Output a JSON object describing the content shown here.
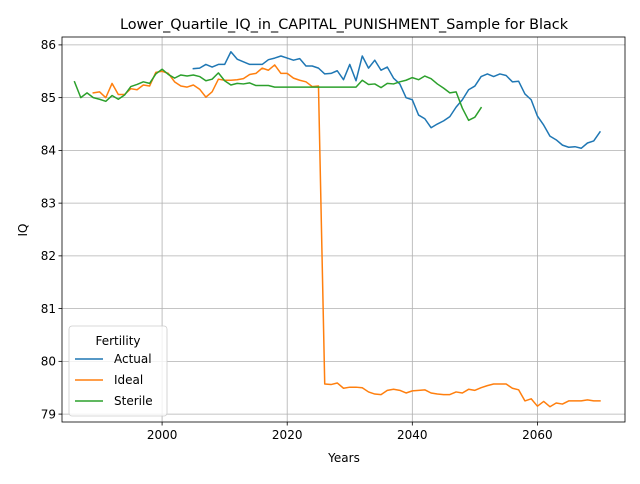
{
  "chart_data": {
    "type": "line",
    "title": "Lower_Quartile_IQ_in_CAPITAL_PUNISHMENT_Sample for Black",
    "xlabel": "Years",
    "ylabel": "IQ",
    "xlim": [
      1984,
      2074
    ],
    "ylim": [
      78.85,
      86.15
    ],
    "grid": true,
    "x_ticks": [
      2000,
      2020,
      2040,
      2060
    ],
    "x_tick_labels": [
      "2000",
      "2020",
      "2040",
      "2060"
    ],
    "y_ticks": [
      79,
      80,
      81,
      82,
      83,
      84,
      85,
      86
    ],
    "y_tick_labels": [
      "79",
      "80",
      "81",
      "82",
      "83",
      "84",
      "85",
      "86"
    ],
    "legend": {
      "title": "Fertility",
      "placement": "lower-left",
      "entries": [
        "Actual",
        "Ideal",
        "Sterile"
      ]
    },
    "series": [
      {
        "name": "Actual",
        "color": "#1f77b4",
        "x": [
          2005,
          2006,
          2007,
          2008,
          2009,
          2010,
          2011,
          2012,
          2013,
          2014,
          2015,
          2016,
          2017,
          2018,
          2019,
          2020,
          2021,
          2022,
          2023,
          2024,
          2025,
          2026,
          2027,
          2028,
          2029,
          2030,
          2031,
          2032,
          2033,
          2034,
          2035,
          2036,
          2037,
          2038,
          2039,
          2040,
          2041,
          2042,
          2043,
          2044,
          2045,
          2046,
          2047,
          2048,
          2049,
          2050,
          2051,
          2052,
          2053,
          2054,
          2055,
          2056,
          2057,
          2058,
          2059,
          2060,
          2061,
          2062,
          2063,
          2064,
          2065,
          2066,
          2067,
          2068,
          2069,
          2070
        ],
        "y": [
          85.55,
          85.56,
          85.63,
          85.58,
          85.63,
          85.63,
          85.87,
          85.73,
          85.68,
          85.63,
          85.63,
          85.63,
          85.72,
          85.75,
          85.79,
          85.75,
          85.71,
          85.74,
          85.6,
          85.6,
          85.56,
          85.45,
          85.46,
          85.51,
          85.34,
          85.63,
          85.32,
          85.79,
          85.56,
          85.71,
          85.52,
          85.58,
          85.37,
          85.26,
          85.0,
          84.96,
          84.67,
          84.6,
          84.43,
          84.5,
          84.56,
          84.64,
          84.82,
          84.96,
          85.15,
          85.22,
          85.4,
          85.45,
          85.4,
          85.45,
          85.42,
          85.3,
          85.31,
          85.07,
          84.96,
          84.65,
          84.48,
          84.27,
          84.2,
          84.1,
          84.06,
          84.07,
          84.04,
          84.14,
          84.18,
          84.35
        ]
      },
      {
        "name": "Ideal",
        "color": "#ff7f0e",
        "x": [
          1989,
          1990,
          1991,
          1992,
          1993,
          1994,
          1995,
          1996,
          1997,
          1998,
          1999,
          2000,
          2001,
          2002,
          2003,
          2004,
          2005,
          2006,
          2007,
          2008,
          2009,
          2010,
          2011,
          2012,
          2013,
          2014,
          2015,
          2016,
          2017,
          2018,
          2019,
          2020,
          2021,
          2022,
          2023,
          2024,
          2025,
          2026,
          2027,
          2028,
          2029,
          2030,
          2031,
          2032,
          2033,
          2034,
          2035,
          2036,
          2037,
          2038,
          2039,
          2040,
          2041,
          2042,
          2043,
          2044,
          2045,
          2046,
          2047,
          2048,
          2049,
          2050,
          2051,
          2052,
          2053,
          2054,
          2055,
          2056,
          2057,
          2058,
          2059,
          2060,
          2061,
          2062,
          2063,
          2064,
          2065,
          2066,
          2067,
          2068,
          2069,
          2070
        ],
        "y": [
          85.09,
          85.11,
          85.0,
          85.27,
          85.06,
          85.06,
          85.17,
          85.15,
          85.24,
          85.22,
          85.48,
          85.5,
          85.46,
          85.3,
          85.22,
          85.2,
          85.24,
          85.16,
          85.01,
          85.11,
          85.35,
          85.33,
          85.33,
          85.34,
          85.36,
          85.44,
          85.46,
          85.56,
          85.52,
          85.62,
          85.46,
          85.46,
          85.37,
          85.33,
          85.3,
          85.21,
          85.22,
          79.57,
          79.56,
          79.59,
          79.49,
          79.51,
          79.51,
          79.5,
          79.42,
          79.38,
          79.37,
          79.45,
          79.47,
          79.45,
          79.4,
          79.44,
          79.45,
          79.46,
          79.4,
          79.38,
          79.37,
          79.37,
          79.42,
          79.4,
          79.47,
          79.45,
          79.5,
          79.54,
          79.57,
          79.57,
          79.57,
          79.49,
          79.46,
          79.25,
          79.29,
          79.15,
          79.24,
          79.14,
          79.21,
          79.19,
          79.25,
          79.25,
          79.25,
          79.27,
          79.25,
          79.25
        ]
      },
      {
        "name": "Sterile",
        "color": "#2ca02c",
        "x": [
          1986,
          1987,
          1988,
          1989,
          1990,
          1991,
          1992,
          1993,
          1994,
          1995,
          1996,
          1997,
          1998,
          1999,
          2000,
          2001,
          2002,
          2003,
          2004,
          2005,
          2006,
          2007,
          2008,
          2009,
          2010,
          2011,
          2012,
          2013,
          2014,
          2015,
          2016,
          2017,
          2018,
          2019,
          2020,
          2021,
          2022,
          2023,
          2024,
          2025,
          2026,
          2027,
          2028,
          2029,
          2030,
          2031,
          2032,
          2033,
          2034,
          2035,
          2036,
          2037,
          2038,
          2039,
          2040,
          2041,
          2042,
          2043,
          2044,
          2045,
          2046,
          2047,
          2048,
          2049,
          2050,
          2051
        ],
        "y": [
          85.3,
          85.0,
          85.09,
          85.0,
          84.97,
          84.93,
          85.04,
          84.97,
          85.05,
          85.21,
          85.25,
          85.3,
          85.27,
          85.45,
          85.54,
          85.44,
          85.37,
          85.43,
          85.41,
          85.43,
          85.4,
          85.32,
          85.35,
          85.47,
          85.32,
          85.24,
          85.27,
          85.26,
          85.28,
          85.23,
          85.23,
          85.23,
          85.2,
          85.2,
          85.2,
          85.2,
          85.2,
          85.2,
          85.2,
          85.2,
          85.2,
          85.2,
          85.2,
          85.2,
          85.2,
          85.2,
          85.33,
          85.25,
          85.26,
          85.19,
          85.27,
          85.26,
          85.3,
          85.33,
          85.38,
          85.34,
          85.41,
          85.36,
          85.26,
          85.18,
          85.09,
          85.11,
          84.8,
          84.57,
          84.63,
          84.81
        ]
      }
    ]
  }
}
